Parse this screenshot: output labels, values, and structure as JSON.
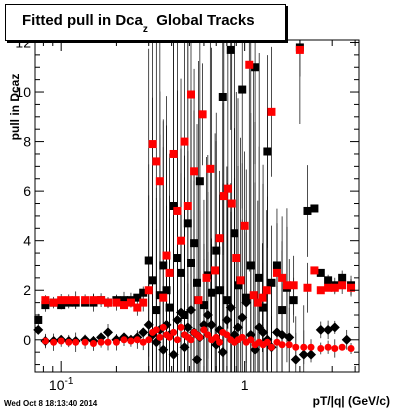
{
  "title": {
    "main": "Fitted pull in Dca",
    "subscript": "z",
    "suffix": "Global Tracks"
  },
  "footer": {
    "timestamp": "Wed Oct  8 18:13:40 2014"
  },
  "chart_data": {
    "type": "scatter",
    "title": "Fitted pull in Dcaz Global Tracks",
    "xlabel": "pT/|q| (GeV/c)",
    "ylabel": "pull in Dcaz",
    "xscale": "log",
    "xlim": [
      0.072,
      4.2
    ],
    "ylim": [
      -1.3,
      12.1
    ],
    "xticks": [
      {
        "v": 0.1,
        "label": "10",
        "sup": "-1"
      },
      {
        "v": 1,
        "label": "1",
        "sup": ""
      }
    ],
    "yticks": [
      0,
      2,
      4,
      6,
      8,
      10,
      12
    ],
    "grid": false,
    "colors": {
      "black_series": "#000000",
      "red_series": "#ff0000",
      "error_bars": "#000000"
    },
    "series": [
      {
        "marker": "square",
        "color": "#000000",
        "points": [
          [
            0.075,
            0.8
          ],
          [
            0.082,
            1.4
          ],
          [
            0.091,
            1.5
          ],
          [
            0.1,
            1.4
          ],
          [
            0.11,
            1.5
          ],
          [
            0.12,
            1.5
          ],
          [
            0.135,
            1.5
          ],
          [
            0.15,
            1.5
          ],
          [
            0.165,
            1.6
          ],
          [
            0.18,
            1.5
          ],
          [
            0.2,
            1.6
          ],
          [
            0.22,
            1.6
          ],
          [
            0.24,
            1.6
          ],
          [
            0.26,
            1.7
          ],
          [
            0.28,
            1.9
          ],
          [
            0.3,
            3.2
          ],
          [
            0.315,
            2.4
          ],
          [
            0.33,
            1.2
          ],
          [
            0.345,
            1.8
          ],
          [
            0.36,
            3.0
          ],
          [
            0.375,
            2.0
          ],
          [
            0.39,
            1.3
          ],
          [
            0.41,
            5.4
          ],
          [
            0.43,
            3.3
          ],
          [
            0.45,
            2.7
          ],
          [
            0.47,
            1.0
          ],
          [
            0.49,
            4.7
          ],
          [
            0.51,
            3.1
          ],
          [
            0.53,
            3.9
          ],
          [
            0.55,
            2.3
          ],
          [
            0.57,
            6.4
          ],
          [
            0.6,
            1.4
          ],
          [
            0.63,
            2.6
          ],
          [
            0.66,
            1.9
          ],
          [
            0.7,
            3.6
          ],
          [
            0.73,
            2.0
          ],
          [
            0.76,
            9.8
          ],
          [
            0.8,
            1.6
          ],
          [
            0.84,
            11.7
          ],
          [
            0.88,
            4.3
          ],
          [
            0.92,
            2.2
          ],
          [
            0.97,
            10.1
          ],
          [
            1.02,
            1.7
          ],
          [
            1.08,
            3.0
          ],
          [
            1.14,
            11.0
          ],
          [
            1.2,
            2.5
          ],
          [
            1.26,
            1.3
          ],
          [
            1.33,
            7.6
          ],
          [
            1.4,
            2.3
          ],
          [
            1.5,
            3.0
          ],
          [
            1.6,
            1.2
          ],
          [
            1.7,
            2.1
          ],
          [
            1.85,
            1.6
          ],
          [
            2.0,
            11.8
          ],
          [
            2.2,
            5.2
          ],
          [
            2.4,
            5.3
          ],
          [
            2.6,
            2.7
          ],
          [
            2.85,
            2.4
          ],
          [
            3.1,
            2.2
          ],
          [
            3.4,
            2.5
          ],
          [
            3.8,
            2.2
          ]
        ]
      },
      {
        "marker": "square",
        "color": "#ff0000",
        "points": [
          [
            0.082,
            1.6
          ],
          [
            0.091,
            1.5
          ],
          [
            0.1,
            1.6
          ],
          [
            0.11,
            1.6
          ],
          [
            0.12,
            1.6
          ],
          [
            0.135,
            1.6
          ],
          [
            0.15,
            1.6
          ],
          [
            0.165,
            1.6
          ],
          [
            0.18,
            1.5
          ],
          [
            0.2,
            1.5
          ],
          [
            0.22,
            1.4
          ],
          [
            0.24,
            1.5
          ],
          [
            0.26,
            1.3
          ],
          [
            0.28,
            1.5
          ],
          [
            0.3,
            2.0
          ],
          [
            0.315,
            7.9
          ],
          [
            0.33,
            7.2
          ],
          [
            0.345,
            6.4
          ],
          [
            0.36,
            1.7
          ],
          [
            0.375,
            3.4
          ],
          [
            0.39,
            2.7
          ],
          [
            0.41,
            7.5
          ],
          [
            0.43,
            5.2
          ],
          [
            0.45,
            4.0
          ],
          [
            0.47,
            8.0
          ],
          [
            0.49,
            5.4
          ],
          [
            0.51,
            9.9
          ],
          [
            0.53,
            6.8
          ],
          [
            0.56,
            1.6
          ],
          [
            0.59,
            9.1
          ],
          [
            0.62,
            2.5
          ],
          [
            0.65,
            6.9
          ],
          [
            0.69,
            2.8
          ],
          [
            0.73,
            4.1
          ],
          [
            0.77,
            5.8
          ],
          [
            0.81,
            6.1
          ],
          [
            0.85,
            5.5
          ],
          [
            0.9,
            3.3
          ],
          [
            0.95,
            2.4
          ],
          [
            1.0,
            4.6
          ],
          [
            1.06,
            11.1
          ],
          [
            1.12,
            1.8
          ],
          [
            1.18,
            1.5
          ],
          [
            1.25,
            1.7
          ],
          [
            1.32,
            2.0
          ],
          [
            1.4,
            9.2
          ],
          [
            1.5,
            2.7
          ],
          [
            1.6,
            2.5
          ],
          [
            1.7,
            2.2
          ],
          [
            1.85,
            2.2
          ],
          [
            2.0,
            11.7
          ],
          [
            2.2,
            2.1
          ],
          [
            2.4,
            2.8
          ],
          [
            2.6,
            2.0
          ],
          [
            2.85,
            2.1
          ],
          [
            3.1,
            2.1
          ],
          [
            3.4,
            2.2
          ],
          [
            3.8,
            2.1
          ]
        ]
      },
      {
        "marker": "diamond",
        "color": "#000000",
        "points": [
          [
            0.075,
            0.4
          ],
          [
            0.082,
            -0.05
          ],
          [
            0.091,
            -0.05
          ],
          [
            0.1,
            0.0
          ],
          [
            0.11,
            -0.05
          ],
          [
            0.12,
            -0.05
          ],
          [
            0.135,
            0.0
          ],
          [
            0.15,
            -0.05
          ],
          [
            0.165,
            0.1
          ],
          [
            0.18,
            0.3
          ],
          [
            0.2,
            0.0
          ],
          [
            0.22,
            0.1
          ],
          [
            0.24,
            0.0
          ],
          [
            0.26,
            0.1
          ],
          [
            0.28,
            0.3
          ],
          [
            0.3,
            0.6
          ],
          [
            0.315,
            0.2
          ],
          [
            0.33,
            -0.1
          ],
          [
            0.345,
            0.4
          ],
          [
            0.36,
            -0.4
          ],
          [
            0.375,
            0.6
          ],
          [
            0.39,
            0.2
          ],
          [
            0.41,
            -0.6
          ],
          [
            0.43,
            0.8
          ],
          [
            0.45,
            1.1
          ],
          [
            0.47,
            -0.3
          ],
          [
            0.49,
            0.5
          ],
          [
            0.51,
            1.2
          ],
          [
            0.53,
            0.3
          ],
          [
            0.55,
            -0.8
          ],
          [
            0.57,
            0.1
          ],
          [
            0.6,
            0.6
          ],
          [
            0.63,
            1.0
          ],
          [
            0.66,
            0.6
          ],
          [
            0.7,
            -0.2
          ],
          [
            0.73,
            0.4
          ],
          [
            0.76,
            -0.5
          ],
          [
            0.8,
            0.8
          ],
          [
            0.84,
            1.3
          ],
          [
            0.88,
            0.2
          ],
          [
            0.92,
            0.5
          ],
          [
            0.97,
            0.9
          ],
          [
            1.02,
            1.5
          ],
          [
            1.08,
            0.2
          ],
          [
            1.14,
            -0.4
          ],
          [
            1.2,
            0.5
          ],
          [
            1.26,
            0.3
          ],
          [
            1.33,
            0.0
          ],
          [
            1.4,
            -0.3
          ],
          [
            1.5,
            0.3
          ],
          [
            1.6,
            0.2
          ],
          [
            1.75,
            0.1
          ],
          [
            1.9,
            -0.8
          ],
          [
            2.1,
            -0.6
          ],
          [
            2.3,
            -0.6
          ],
          [
            2.6,
            0.4
          ],
          [
            2.85,
            0.4
          ],
          [
            3.1,
            0.5
          ],
          [
            3.6,
            0.0
          ]
        ]
      },
      {
        "marker": "circle",
        "color": "#ff0000",
        "points": [
          [
            0.082,
            -0.05
          ],
          [
            0.091,
            -0.1
          ],
          [
            0.1,
            -0.05
          ],
          [
            0.11,
            -0.1
          ],
          [
            0.12,
            -0.1
          ],
          [
            0.135,
            -0.1
          ],
          [
            0.15,
            -0.15
          ],
          [
            0.165,
            -0.1
          ],
          [
            0.18,
            -0.1
          ],
          [
            0.2,
            -0.1
          ],
          [
            0.22,
            0.0
          ],
          [
            0.24,
            -0.05
          ],
          [
            0.26,
            0.0
          ],
          [
            0.28,
            -0.1
          ],
          [
            0.3,
            0.0
          ],
          [
            0.315,
            0.3
          ],
          [
            0.33,
            0.4
          ],
          [
            0.345,
            0.1
          ],
          [
            0.36,
            0.5
          ],
          [
            0.375,
            0.2
          ],
          [
            0.39,
            0.1
          ],
          [
            0.41,
            0.3
          ],
          [
            0.43,
            0.0
          ],
          [
            0.45,
            0.5
          ],
          [
            0.47,
            0.2
          ],
          [
            0.49,
            0.1
          ],
          [
            0.51,
            0.0
          ],
          [
            0.53,
            0.3
          ],
          [
            0.55,
            0.2
          ],
          [
            0.57,
            0.1
          ],
          [
            0.6,
            0.4
          ],
          [
            0.63,
            0.2
          ],
          [
            0.66,
            0.0
          ],
          [
            0.7,
            0.1
          ],
          [
            0.73,
            -0.1
          ],
          [
            0.76,
            0.3
          ],
          [
            0.8,
            0.2
          ],
          [
            0.84,
            0.0
          ],
          [
            0.88,
            -0.1
          ],
          [
            0.92,
            0.0
          ],
          [
            0.97,
            0.1
          ],
          [
            1.02,
            -0.1
          ],
          [
            1.08,
            0.0
          ],
          [
            1.14,
            -0.2
          ],
          [
            1.2,
            -0.1
          ],
          [
            1.26,
            -0.2
          ],
          [
            1.33,
            -0.1
          ],
          [
            1.4,
            -0.3
          ],
          [
            1.5,
            -0.1
          ],
          [
            1.6,
            -0.2
          ],
          [
            1.75,
            -0.2
          ],
          [
            1.9,
            -0.3
          ],
          [
            2.1,
            -0.3
          ],
          [
            2.3,
            -0.3
          ],
          [
            2.6,
            -0.35
          ],
          [
            2.85,
            -0.3
          ],
          [
            3.1,
            -0.35
          ],
          [
            3.4,
            -0.3
          ],
          [
            3.8,
            -0.35
          ]
        ]
      }
    ]
  }
}
